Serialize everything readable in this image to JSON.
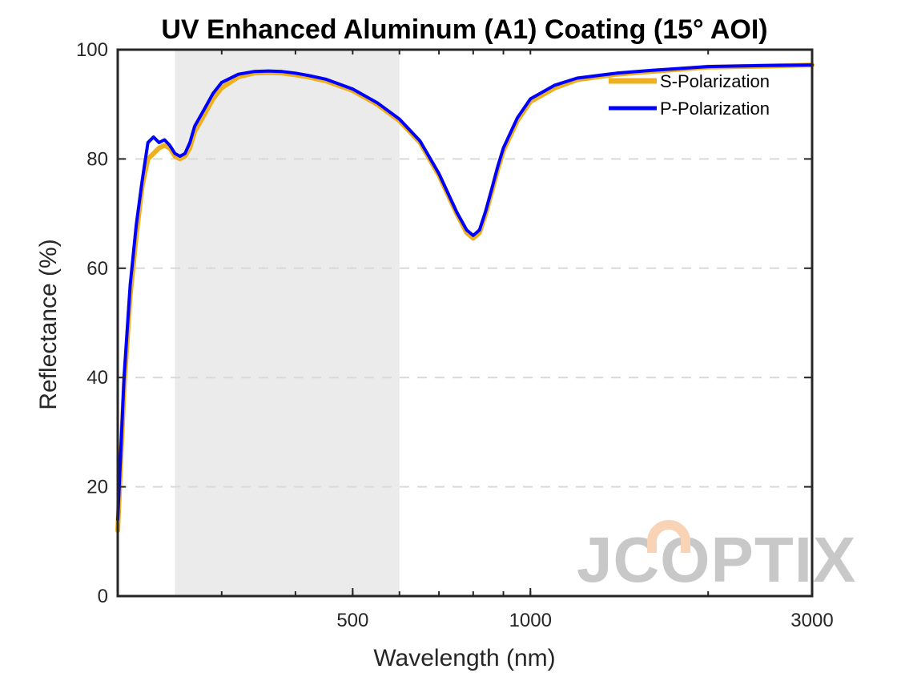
{
  "chart_data": {
    "type": "line",
    "title": "UV Enhanced Aluminum (A1) Coating  (15° AOI)",
    "xlabel": "Wavelength (nm)",
    "ylabel": "Reflectance (%)",
    "xscale": "log",
    "xlim": [
      200,
      3000
    ],
    "ylim": [
      0,
      100
    ],
    "xticks": [
      500,
      1000,
      3000
    ],
    "yticks": [
      0,
      20,
      40,
      60,
      80,
      100
    ],
    "grid": "horizontal dashed",
    "legend_position": "top-right",
    "shaded_band_nm": [
      250,
      600
    ],
    "colors": {
      "s": "#EDB120",
      "p": "#0000FF",
      "band": "#ebebeb",
      "logo_gray": "#c8c8c8",
      "logo_accent": "#f8d3b5"
    },
    "logo_text": "JCOPTIX",
    "series": [
      {
        "name": "S-Polarization",
        "x": [
          200,
          205,
          210,
          215,
          220,
          225,
          230,
          235,
          240,
          245,
          250,
          255,
          260,
          265,
          270,
          280,
          290,
          300,
          320,
          340,
          360,
          380,
          400,
          420,
          450,
          500,
          550,
          600,
          650,
          700,
          750,
          780,
          800,
          820,
          840,
          860,
          880,
          900,
          950,
          1000,
          1100,
          1200,
          1400,
          1600,
          2000,
          2500,
          3000
        ],
        "y": [
          12,
          38,
          55,
          66,
          75,
          80,
          81,
          82,
          82.5,
          82,
          80.5,
          80,
          80.5,
          82,
          85,
          88,
          91,
          93,
          95,
          95.7,
          95.8,
          95.7,
          95.4,
          95,
          94.3,
          92.5,
          90,
          87,
          83,
          77,
          70,
          66.5,
          65.5,
          66.5,
          70,
          74,
          78,
          81.5,
          87,
          90.5,
          93,
          94.5,
          95.5,
          96,
          96.8,
          97,
          97.2
        ]
      },
      {
        "name": "P-Polarization",
        "x": [
          200,
          205,
          210,
          215,
          220,
          225,
          230,
          235,
          240,
          245,
          250,
          255,
          260,
          265,
          270,
          280,
          290,
          300,
          320,
          340,
          360,
          380,
          400,
          420,
          450,
          500,
          550,
          600,
          650,
          700,
          750,
          780,
          800,
          820,
          840,
          860,
          880,
          900,
          950,
          1000,
          1100,
          1200,
          1400,
          1600,
          2000,
          2500,
          3000
        ],
        "y": [
          14,
          40,
          57,
          68,
          76,
          83,
          84,
          83,
          83.5,
          82.5,
          81,
          80.5,
          81,
          83,
          86,
          89,
          92,
          94,
          95.5,
          96,
          96.1,
          96,
          95.7,
          95.3,
          94.6,
          92.8,
          90.3,
          87.3,
          83.3,
          77.3,
          70.3,
          67,
          66,
          67,
          70.5,
          74.5,
          78.5,
          82,
          87.5,
          91,
          93.5,
          94.8,
          95.7,
          96.2,
          96.9,
          97.1,
          97.2
        ]
      }
    ]
  }
}
